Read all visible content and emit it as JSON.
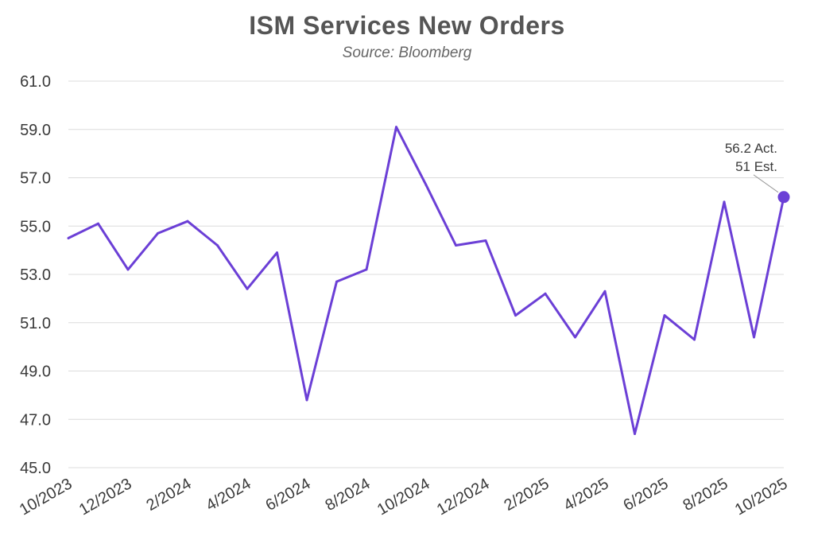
{
  "chart_data": {
    "type": "line",
    "title": "ISM Services New Orders",
    "subtitle": "Source: Bloomberg",
    "xlabel": "",
    "ylabel": "",
    "ylim": [
      45.0,
      61.0
    ],
    "yticks": [
      "45.0",
      "47.0",
      "49.0",
      "51.0",
      "53.0",
      "55.0",
      "57.0",
      "59.0",
      "61.0"
    ],
    "x": [
      "10/2023",
      "11/2023",
      "12/2023",
      "1/2024",
      "2/2024",
      "3/2024",
      "4/2024",
      "5/2024",
      "6/2024",
      "7/2024",
      "8/2024",
      "9/2024",
      "10/2024",
      "11/2024",
      "12/2024",
      "1/2025",
      "2/2025",
      "3/2025",
      "4/2025",
      "5/2025",
      "6/2025",
      "7/2025",
      "8/2025",
      "9/2025",
      "10/2025"
    ],
    "xticks": [
      "10/2023",
      "12/2023",
      "2/2024",
      "4/2024",
      "6/2024",
      "8/2024",
      "10/2024",
      "12/2024",
      "2/2025",
      "4/2025",
      "6/2025",
      "8/2025",
      "10/2025"
    ],
    "series": [
      {
        "name": "ISM Services New Orders",
        "color": "#6b3fd6",
        "values": [
          54.5,
          55.1,
          53.2,
          54.7,
          55.2,
          54.2,
          52.4,
          53.9,
          47.8,
          52.7,
          53.2,
          59.1,
          56.7,
          54.2,
          54.4,
          51.3,
          52.2,
          50.4,
          52.3,
          46.4,
          51.3,
          50.3,
          56.0,
          50.4,
          56.2
        ]
      }
    ],
    "annotation": {
      "actual_label": "56.2 Act.",
      "estimate_label": "51 Est."
    }
  }
}
